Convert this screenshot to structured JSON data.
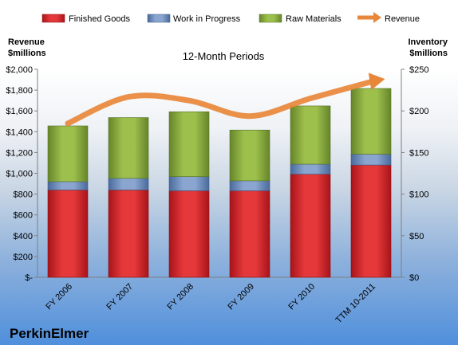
{
  "chart_data": {
    "type": "bar",
    "subtitle": "12-Month Periods",
    "company": "PerkinElmer",
    "y_left_label": [
      "Revenue",
      "$millions"
    ],
    "y_right_label": [
      "Inventory",
      "$millions"
    ],
    "categories": [
      "FY 2006",
      "FY 2007",
      "FY 2008",
      "FY 2009",
      "FY 2010",
      "TTM 10-2011"
    ],
    "series": [
      {
        "name": "Finished Goods",
        "axis": "right",
        "color": "#cc2226",
        "values": [
          105,
          105,
          104,
          104,
          124,
          135
        ]
      },
      {
        "name": "Work in Progress",
        "axis": "right",
        "color": "#6f8fbf",
        "values": [
          10,
          14,
          17,
          12,
          12,
          13
        ]
      },
      {
        "name": "Raw Materials",
        "axis": "right",
        "color": "#86a838",
        "values": [
          67,
          73,
          78,
          61,
          70,
          79
        ]
      },
      {
        "name": "Revenue",
        "type": "line",
        "axis": "left",
        "color": "#e8873a",
        "values": [
          1480,
          1735,
          1700,
          1550,
          1720,
          1880
        ]
      }
    ],
    "y_left": {
      "min": 0,
      "max": 2000,
      "ticks": [
        "$-",
        "$200",
        "$400",
        "$600",
        "$800",
        "$1,000",
        "$1,200",
        "$1,400",
        "$1,600",
        "$1,800",
        "$2,000"
      ]
    },
    "y_right": {
      "min": 0,
      "max": 250,
      "ticks": [
        "$0",
        "$50",
        "$100",
        "$150",
        "$200",
        "$250"
      ]
    },
    "legend_position": "top",
    "grid": false
  }
}
